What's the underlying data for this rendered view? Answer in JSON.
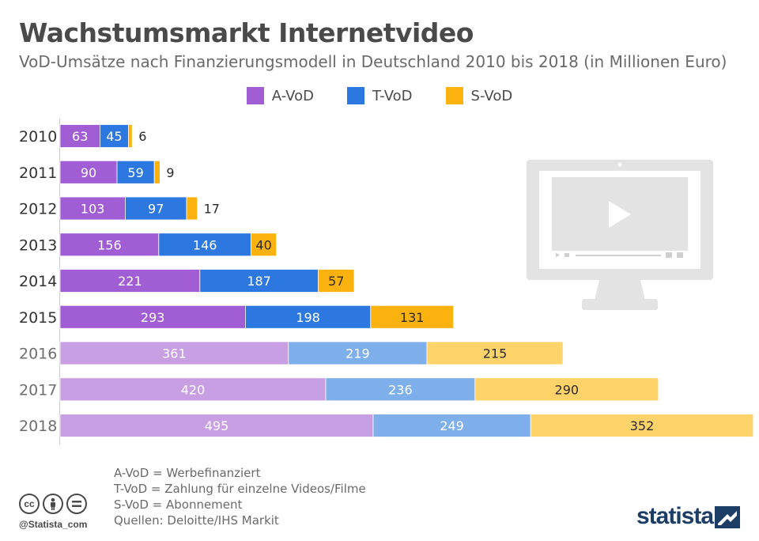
{
  "header": {
    "title": "Wachstumsmarkt Internetvideo",
    "subtitle": "VoD-Umsätze nach Finanzierungsmodell in Deutschland 2010 bis 2018 (in Millionen Euro)"
  },
  "colors": {
    "avod": "#a15ed4",
    "tvod": "#2c78e0",
    "svod": "#fbb20f",
    "avod_forecast": "#c89fe3",
    "tvod_forecast": "#7eafea",
    "svod_forecast": "#fdd36a"
  },
  "chart_data": {
    "type": "bar",
    "orientation": "horizontal",
    "stacked": true,
    "categories": [
      "2010",
      "2011",
      "2012",
      "2013",
      "2014",
      "2015",
      "2016",
      "2017",
      "2018"
    ],
    "forecast_from": "2016",
    "series": [
      {
        "name": "A-VoD",
        "values": [
          63,
          90,
          103,
          156,
          221,
          293,
          361,
          420,
          495
        ]
      },
      {
        "name": "T-VoD",
        "values": [
          45,
          59,
          97,
          146,
          187,
          198,
          219,
          236,
          249
        ]
      },
      {
        "name": "S-VoD",
        "values": [
          6,
          9,
          17,
          40,
          57,
          131,
          215,
          290,
          352
        ]
      }
    ],
    "legend_position": "top-center",
    "grid": false
  },
  "notes": {
    "avod": "A-VoD = Werbefinanziert",
    "tvod": "T-VoD = Zahlung für einzelne Videos/Filme",
    "svod": "S-VoD = Abonnement",
    "sources": "Quellen: Deloitte/IHS Markit"
  },
  "footer": {
    "handle": "@Statista_com",
    "brand": "statista",
    "cc_icons": [
      "cc-icon",
      "by-icon",
      "nd-icon"
    ]
  }
}
